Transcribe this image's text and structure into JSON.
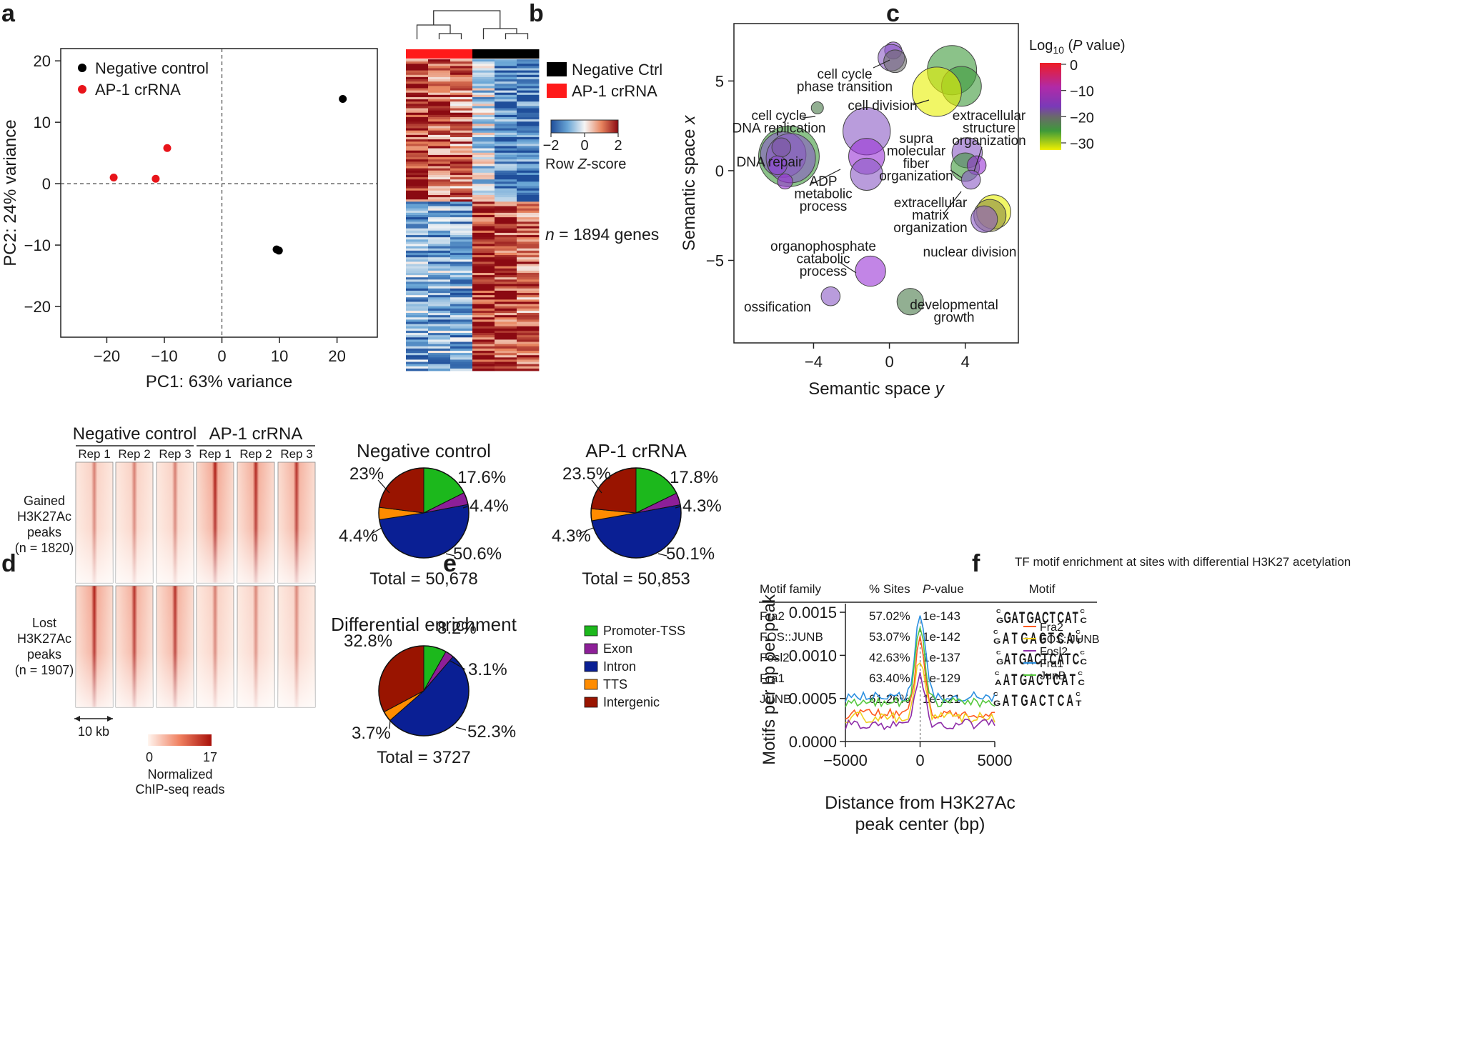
{
  "panel_labels": [
    "a",
    "b",
    "c",
    "d",
    "e",
    "f"
  ],
  "chart_data": [
    {
      "panel": "a",
      "type": "scatter",
      "xlabel": "PC1: 63% variance",
      "ylabel": "PC2: 24% variance",
      "xlim": [
        -28,
        27
      ],
      "ylim": [
        -25,
        22
      ],
      "xticks": [
        "−20",
        "−10",
        "0",
        "10",
        "20"
      ],
      "xtick_values": [
        -20,
        -10,
        0,
        10,
        20
      ],
      "yticks": [
        "20",
        "10",
        "0",
        "−10",
        "−20"
      ],
      "ytick_values": [
        20,
        10,
        0,
        -10,
        -20
      ],
      "series": [
        {
          "name": "Negative control",
          "color": "#000000",
          "points": [
            [
              21,
              13.8
            ],
            [
              9.5,
              -10.7
            ],
            [
              9.9,
              -10.9
            ]
          ]
        },
        {
          "name": "AP-1 crRNA",
          "color": "#e8141a",
          "points": [
            [
              -9.5,
              5.8
            ],
            [
              -18.8,
              1.0
            ],
            [
              -11.5,
              0.8
            ]
          ]
        }
      ]
    },
    {
      "panel": "b",
      "type": "heatmap",
      "legend": [
        {
          "label": "Negative Ctrl",
          "color": "#000000"
        },
        {
          "label": "AP-1 crRNA",
          "color": "#ff1a1a"
        }
      ],
      "colorbar": {
        "title": "Row Z-score",
        "ticks": [
          "−2",
          "0",
          "2"
        ]
      },
      "annotation": "n = 1894 genes",
      "columns": [
        "AP-1 crRNA",
        "AP-1 crRNA",
        "AP-1 crRNA",
        "Negative Ctrl",
        "Negative Ctrl",
        "Negative Ctrl"
      ],
      "top_block_profile": [
        1.6,
        1.2,
        1.0,
        -0.4,
        -1.4,
        -1.5
      ],
      "bottom_block_profile": [
        -1.0,
        -0.9,
        -0.9,
        1.8,
        1.5,
        1.2
      ]
    },
    {
      "panel": "c",
      "type": "scatter",
      "xlabel": "Semantic space y",
      "ylabel": "Semantic space x",
      "xticks": [
        "−4",
        "0",
        "4"
      ],
      "xtick_values": [
        -4,
        0,
        4
      ],
      "yticks": [
        "5",
        "0",
        "−5"
      ],
      "ytick_values": [
        5,
        0,
        -5
      ],
      "xlim": [
        -8.2,
        6.8
      ],
      "ylim": [
        -9.6,
        8.2
      ],
      "colorbar": {
        "title": "Log10 (P value)",
        "ticks": [
          "0",
          "−10",
          "−20",
          "−30"
        ],
        "tick_values": [
          0,
          -10,
          -20,
          -30
        ]
      },
      "bubbles": [
        {
          "x": 0.2,
          "y": 6.7,
          "r": 0.45,
          "color": "#8b44cf"
        },
        {
          "x": 0.1,
          "y": 6.3,
          "r": 0.7,
          "color": "#8b5ac4"
        },
        {
          "x": 0.3,
          "y": 6.1,
          "r": 0.6,
          "color": "#6b6b6b"
        },
        {
          "x": 3.3,
          "y": 5.6,
          "r": 1.3,
          "color": "#3e9a3a"
        },
        {
          "x": 3.8,
          "y": 4.7,
          "r": 1.05,
          "color": "#3e9a3a"
        },
        {
          "x": 2.5,
          "y": 4.4,
          "r": 1.3,
          "color": "#e8f000"
        },
        {
          "x": -3.8,
          "y": 3.5,
          "r": 0.32,
          "color": "#4a7a4a"
        },
        {
          "x": -1.2,
          "y": 2.2,
          "r": 1.25,
          "color": "#8b5ac4"
        },
        {
          "x": -1.2,
          "y": 0.8,
          "r": 0.95,
          "color": "#9a33d6"
        },
        {
          "x": -1.2,
          "y": -0.2,
          "r": 0.85,
          "color": "#8b5ac4"
        },
        {
          "x": -5.3,
          "y": 0.8,
          "r": 1.6,
          "color": "#3e9a3a"
        },
        {
          "x": -5.6,
          "y": 0.9,
          "r": 1.2,
          "color": "#8b5ac4"
        },
        {
          "x": -5.2,
          "y": 0.7,
          "r": 1.3,
          "color": "#8b5ac4"
        },
        {
          "x": -5.7,
          "y": 1.3,
          "r": 0.5,
          "color": "#7a55a0"
        },
        {
          "x": -5.5,
          "y": -0.6,
          "r": 0.4,
          "color": "#9a33d6"
        },
        {
          "x": -5.9,
          "y": 0.3,
          "r": 0.5,
          "color": "#8b44cf"
        },
        {
          "x": 4.1,
          "y": 1.0,
          "r": 0.8,
          "color": "#8b5ac4"
        },
        {
          "x": 4.0,
          "y": 0.2,
          "r": 0.75,
          "color": "#3e9a3a"
        },
        {
          "x": 4.6,
          "y": 0.3,
          "r": 0.5,
          "color": "#9a33d6"
        },
        {
          "x": 4.3,
          "y": -0.5,
          "r": 0.5,
          "color": "#8b5ac4"
        },
        {
          "x": 5.5,
          "y": -2.3,
          "r": 0.9,
          "color": "#e8f000"
        },
        {
          "x": 5.3,
          "y": -2.5,
          "r": 0.85,
          "color": "#8b8b40"
        },
        {
          "x": 5.0,
          "y": -2.7,
          "r": 0.7,
          "color": "#8b5ac4"
        },
        {
          "x": -1.0,
          "y": -5.6,
          "r": 0.8,
          "color": "#9a33d6"
        },
        {
          "x": -3.1,
          "y": -7.0,
          "r": 0.5,
          "color": "#8b5ac4"
        },
        {
          "x": 1.1,
          "y": -7.3,
          "r": 0.7,
          "color": "#4a7a4a"
        }
      ],
      "annotations": [
        {
          "lines": [
            "cell cycle",
            "phase transition"
          ]
        },
        {
          "lines": [
            "cell division"
          ]
        },
        {
          "lines": [
            "cell cycle",
            "DNA replication"
          ]
        },
        {
          "lines": [
            "extracellular",
            "structure",
            "organization"
          ]
        },
        {
          "lines": [
            "supra",
            "molecular",
            "fiber",
            "organization"
          ]
        },
        {
          "lines": [
            "DNA repair"
          ]
        },
        {
          "lines": [
            "ADP",
            "metabolic",
            "process"
          ]
        },
        {
          "lines": [
            "extracellular",
            "matrix",
            "organization"
          ]
        },
        {
          "lines": [
            "nuclear division"
          ]
        },
        {
          "lines": [
            "organophosphate",
            "catabolic",
            "process"
          ]
        },
        {
          "lines": [
            "ossification"
          ]
        },
        {
          "lines": [
            "developmental",
            "growth"
          ]
        }
      ]
    },
    {
      "panel": "d",
      "type": "heatmap",
      "group_labels": [
        "Negative control",
        "AP-1 crRNA"
      ],
      "column_labels": [
        "Rep 1",
        "Rep 2",
        "Rep 3",
        "Rep 1",
        "Rep 2",
        "Rep 3"
      ],
      "row_groups": [
        {
          "lines": [
            "Gained",
            "H3K27Ac",
            "peaks",
            "(n = 1820)"
          ],
          "intensity": [
            0.45,
            0.45,
            0.45,
            0.95,
            0.9,
            0.85
          ]
        },
        {
          "lines": [
            "Lost",
            "H3K27Ac",
            "peaks",
            "(n = 1907)"
          ],
          "intensity": [
            0.95,
            0.85,
            0.85,
            0.45,
            0.4,
            0.4
          ]
        }
      ],
      "scale_label": "10 kb",
      "colorbar": {
        "min": "0",
        "max": "17",
        "title": [
          "Normalized",
          "ChIP-seq reads"
        ]
      }
    },
    {
      "panel": "e",
      "type": "pie",
      "categories": [
        "Promoter-TSS",
        "Exon",
        "Intron",
        "TTS",
        "Intergenic"
      ],
      "colors": [
        "#1cb81c",
        "#8d1f98",
        "#0a1f94",
        "#ff8c00",
        "#991400"
      ],
      "pies": [
        {
          "title": "Negative control",
          "values": [
            17.6,
            4.4,
            50.6,
            4.4,
            23.0
          ],
          "labels": [
            "17.6%",
            "4.4%",
            "50.6%",
            "4.4%",
            "23%"
          ],
          "total": "Total = 50,678"
        },
        {
          "title": "AP-1 crRNA",
          "values": [
            17.8,
            4.3,
            50.1,
            4.3,
            23.5
          ],
          "labels": [
            "17.8%",
            "4.3%",
            "50.1%",
            "4.3%",
            "23.5%"
          ],
          "total": "Total = 50,853"
        },
        {
          "title": "Differential enrichment",
          "values": [
            8.2,
            3.1,
            52.3,
            3.7,
            32.8
          ],
          "labels": [
            "8.2%",
            "3.1%",
            "52.3%",
            "3.7%",
            "32.8%"
          ],
          "total": "Total = 3727"
        }
      ]
    },
    {
      "panel": "f",
      "type": "table",
      "title": "TF motif enrichment at sites with differential H3K27 acetylation",
      "columns": [
        "Motif family",
        "% Sites",
        "P-value",
        "Motif"
      ],
      "rows": [
        {
          "family": "Fra2",
          "sites": "57.02%",
          "p": "1e-143",
          "logo": "GGATGACTCATC"
        },
        {
          "family": "FOS::JUNB",
          "sites": "53.07%",
          "p": "1e-142",
          "logo": "GATGAGTCAT"
        },
        {
          "family": "Fosl2",
          "sites": "42.63%",
          "p": "1e-137",
          "logo": "GATGACTCATCC"
        },
        {
          "family": "Fra1",
          "sites": "63.40%",
          "p": "1e-129",
          "logo": "AATGACTCATC"
        },
        {
          "family": "JUNB",
          "sites": "61.26%",
          "p": "1e-121",
          "logo": "GATGACTCAT"
        }
      ]
    },
    {
      "panel": "f",
      "type": "line",
      "xlabel": "Distance from H3K27Ac peak center (bp)",
      "xlabel_lines": [
        "Distance from H3K27Ac",
        "peak center (bp)"
      ],
      "ylabel": "Motifs per bp per peak",
      "xlim": [
        -5000,
        5000
      ],
      "ylim": [
        0,
        0.0016
      ],
      "xticks": [
        "−5000",
        "0",
        "5000"
      ],
      "xtick_values": [
        -5000,
        0,
        5000
      ],
      "yticks": [
        "0.0000",
        "0.0005",
        "0.0010",
        "0.0015"
      ],
      "ytick_values": [
        0,
        0.0005,
        0.001,
        0.0015
      ],
      "series": [
        {
          "name": "Fra2",
          "color": "#ff5a1f",
          "baseline": 0.00032,
          "peak": 0.0012
        },
        {
          "name": "FOS::JUNB",
          "color": "#f0d020",
          "baseline": 0.00028,
          "peak": 0.00095
        },
        {
          "name": "Fosl2",
          "color": "#8e2ca8",
          "baseline": 0.0002,
          "peak": 0.00078
        },
        {
          "name": "Fra1",
          "color": "#2b8fe0",
          "baseline": 0.00052,
          "peak": 0.0015
        },
        {
          "name": "JunB",
          "color": "#56c83e",
          "baseline": 0.00046,
          "peak": 0.0013
        }
      ]
    }
  ]
}
